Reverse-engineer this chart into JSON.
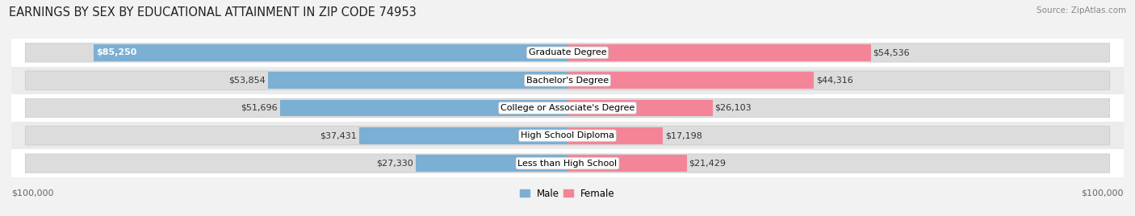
{
  "title": "EARNINGS BY SEX BY EDUCATIONAL ATTAINMENT IN ZIP CODE 74953",
  "source": "Source: ZipAtlas.com",
  "categories": [
    "Less than High School",
    "High School Diploma",
    "College or Associate's Degree",
    "Bachelor's Degree",
    "Graduate Degree"
  ],
  "male_values": [
    27330,
    37431,
    51696,
    53854,
    85250
  ],
  "female_values": [
    21429,
    17198,
    26103,
    44316,
    54536
  ],
  "max_value": 100000,
  "male_color": "#7bafd4",
  "female_color": "#f48498",
  "male_label": "Male",
  "female_label": "Female",
  "bg_color": "#f2f2f2",
  "axis_label_left": "$100,000",
  "axis_label_right": "$100,000",
  "title_fontsize": 10.5,
  "label_fontsize": 8.5,
  "value_fontsize": 8.0,
  "cat_fontsize": 8.0
}
